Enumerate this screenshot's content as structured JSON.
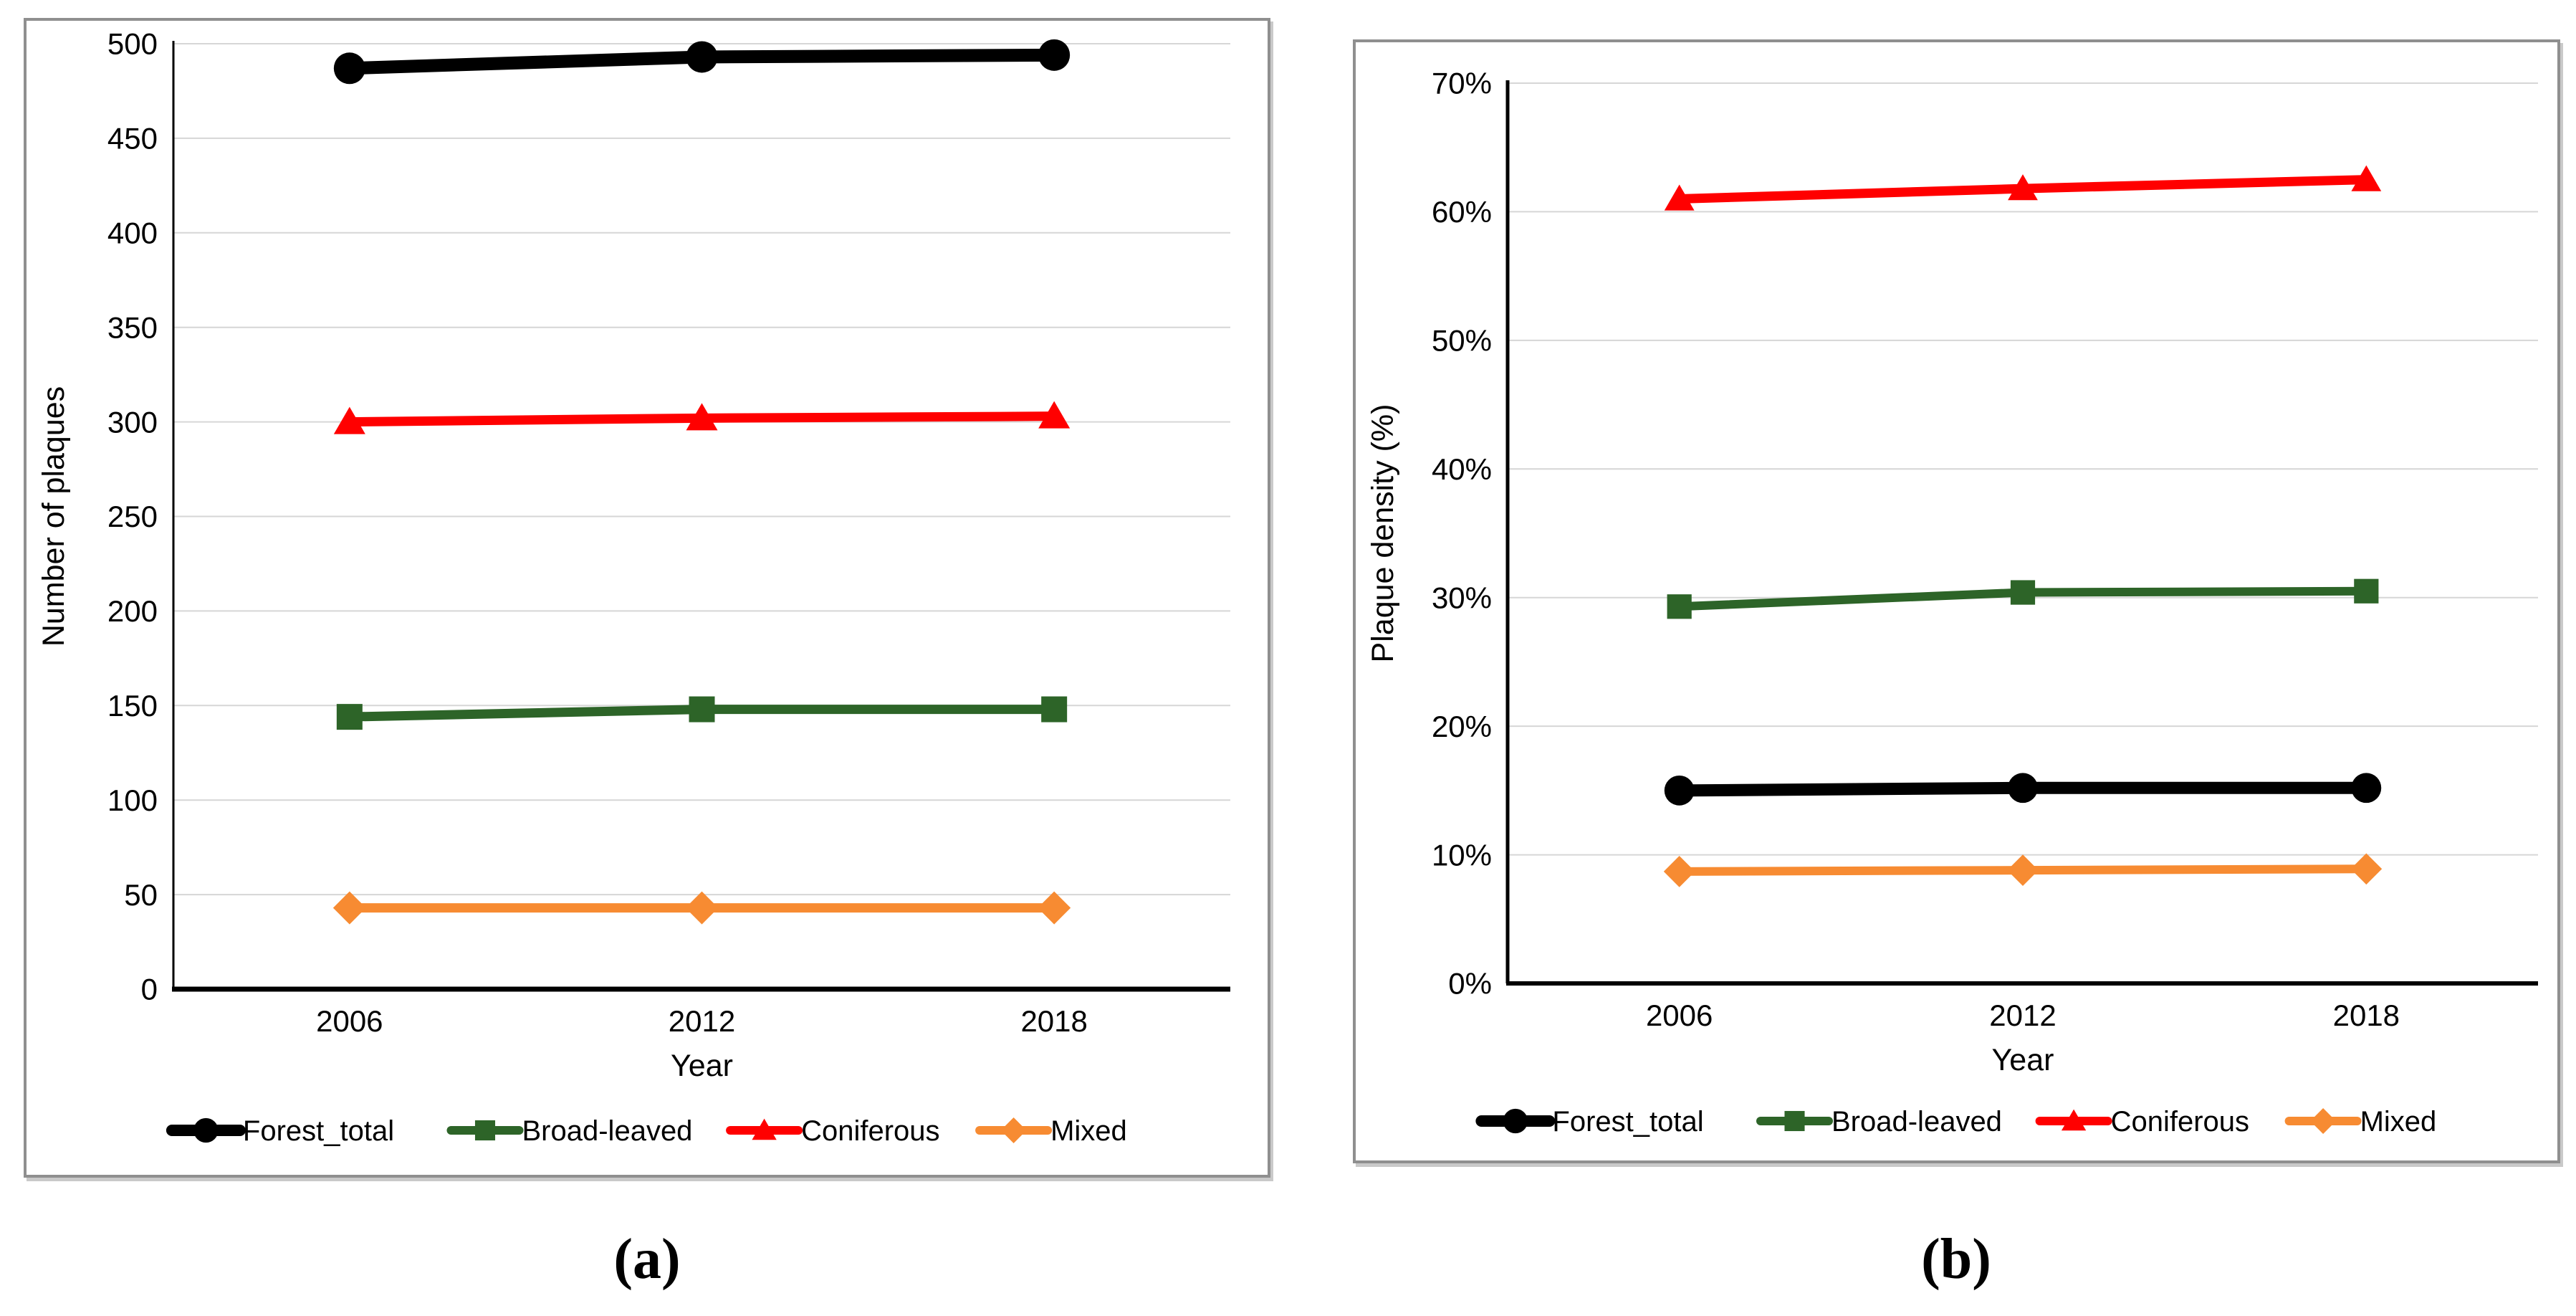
{
  "figure": {
    "background": "#ffffff",
    "caption_a": "(a)",
    "caption_b": "(b)"
  },
  "colors": {
    "forest_total": "#000000",
    "broad_leaved": "#2D6428",
    "coniferous": "#FF0000",
    "mixed": "#F78B32",
    "gridline": "#D6D6D6",
    "axis": "#000000",
    "panel_border": "#8F8F8F"
  },
  "chart_data": [
    {
      "id": "a",
      "type": "line",
      "caption": "(a)",
      "xlabel": "Year",
      "ylabel": "Number of plaques",
      "categories": [
        "2006",
        "2012",
        "2018"
      ],
      "ylim": [
        0,
        500
      ],
      "y_tick_step": 50,
      "y_tick_labels": [
        "0",
        "50",
        "100",
        "150",
        "200",
        "250",
        "300",
        "350",
        "400",
        "450",
        "500"
      ],
      "grid": true,
      "legend_position": "bottom",
      "series": [
        {
          "name": "Forest_total",
          "color": "#000000",
          "marker": "circle",
          "values": [
            487,
            493,
            494
          ]
        },
        {
          "name": "Broad-leaved",
          "color": "#2D6428",
          "marker": "square",
          "values": [
            144,
            148,
            148
          ]
        },
        {
          "name": "Coniferous",
          "color": "#FF0000",
          "marker": "triangle",
          "values": [
            300,
            302,
            303
          ]
        },
        {
          "name": "Mixed",
          "color": "#F78B32",
          "marker": "diamond",
          "values": [
            43,
            43,
            43
          ]
        }
      ]
    },
    {
      "id": "b",
      "type": "line",
      "caption": "(b)",
      "xlabel": "Year",
      "ylabel": "Plaque density (%)",
      "categories": [
        "2006",
        "2012",
        "2018"
      ],
      "ylim": [
        0,
        70
      ],
      "y_tick_step": 10,
      "y_tick_labels": [
        "0%",
        "10%",
        "20%",
        "30%",
        "40%",
        "50%",
        "60%",
        "70%"
      ],
      "grid": true,
      "legend_position": "bottom",
      "series": [
        {
          "name": "Forest_total",
          "color": "#000000",
          "marker": "circle",
          "values": [
            15.0,
            15.2,
            15.2
          ]
        },
        {
          "name": "Broad-leaved",
          "color": "#2D6428",
          "marker": "square",
          "values": [
            29.3,
            30.4,
            30.5
          ]
        },
        {
          "name": "Coniferous",
          "color": "#FF0000",
          "marker": "triangle",
          "values": [
            61.0,
            61.8,
            62.5
          ]
        },
        {
          "name": "Mixed",
          "color": "#F78B32",
          "marker": "diamond",
          "values": [
            8.7,
            8.8,
            8.9
          ]
        }
      ]
    }
  ]
}
